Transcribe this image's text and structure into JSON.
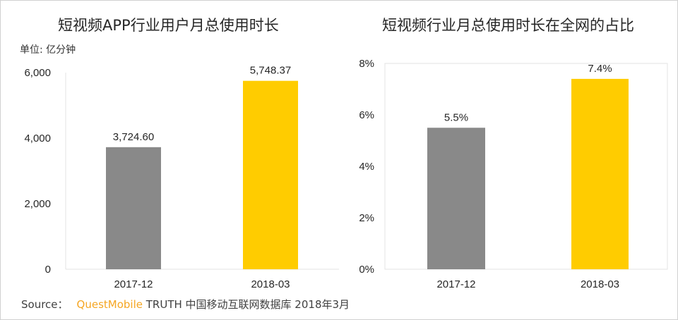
{
  "chart_data": [
    {
      "type": "bar",
      "title": "短视频APP行业用户月总使用时长",
      "unit_label": "单位: 亿分钟",
      "categories": [
        "2017-12",
        "2018-03"
      ],
      "values": [
        3724.6,
        5748.37
      ],
      "data_labels": [
        "3,724.60",
        "5,748.37"
      ],
      "colors": [
        "#898989",
        "#ffcc00"
      ],
      "yticks": [
        "0",
        "2,000",
        "4,000",
        "6,000"
      ],
      "ytick_values": [
        0,
        2000,
        4000,
        6000
      ],
      "ylim": [
        0,
        6000
      ],
      "xlabel": "",
      "ylabel": ""
    },
    {
      "type": "bar",
      "title": "短视频行业月总使用时长在全网的占比",
      "categories": [
        "2017-12",
        "2018-03"
      ],
      "values": [
        5.5,
        7.4
      ],
      "data_labels": [
        "5.5%",
        "7.4%"
      ],
      "colors": [
        "#898989",
        "#ffcc00"
      ],
      "yticks": [
        "0%",
        "2%",
        "4%",
        "6%",
        "8%"
      ],
      "ytick_values": [
        0,
        2,
        4,
        6,
        8
      ],
      "ylim": [
        0,
        8
      ],
      "xlabel": "",
      "ylabel": ""
    }
  ],
  "source": {
    "prefix": "Source：",
    "brand": "QuestMobile",
    "text": "TRUTH 中国移动互联网数据库 2018年3月"
  },
  "colors": {
    "brand": "#f5a623"
  }
}
